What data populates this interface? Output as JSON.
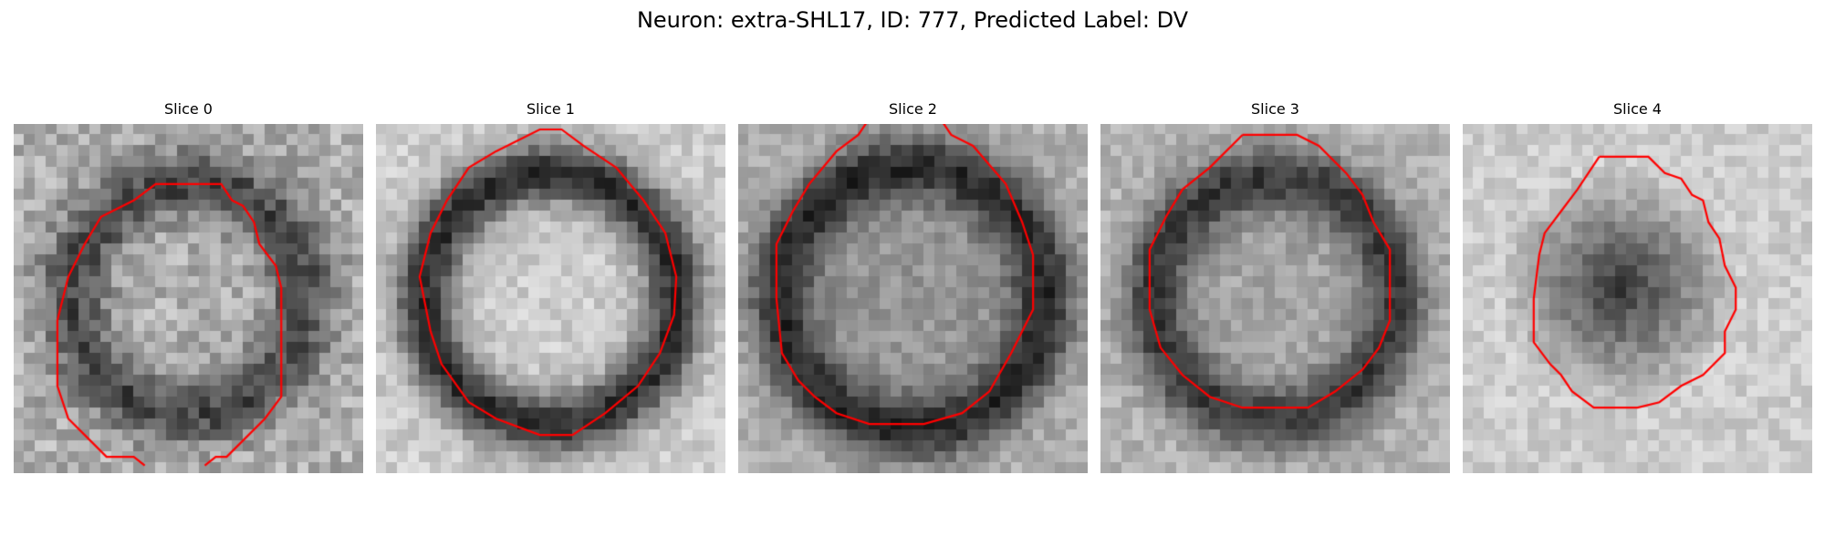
{
  "figure": {
    "title": "Neuron: extra-SHL17, ID: 777, Predicted Label: DV"
  },
  "contour_color": "#ff0000",
  "slices": [
    {
      "title": "Slice 0",
      "image_description": "noisy grayscale micrograph with dark ring around brighter nucleus",
      "contour": "open outline"
    },
    {
      "title": "Slice 1",
      "image_description": "grayscale micrograph with dark ring and bright center",
      "contour": "closed outline"
    },
    {
      "title": "Slice 2",
      "image_description": "grayscale micrograph with dark ring and medium gray center",
      "contour": "closed outline"
    },
    {
      "title": "Slice 3",
      "image_description": "grayscale micrograph with dark ring and gray center",
      "contour": "closed outline"
    },
    {
      "title": "Slice 4",
      "image_description": "grayscale micrograph with dark blob in center on light background",
      "contour": "closed outline"
    }
  ]
}
